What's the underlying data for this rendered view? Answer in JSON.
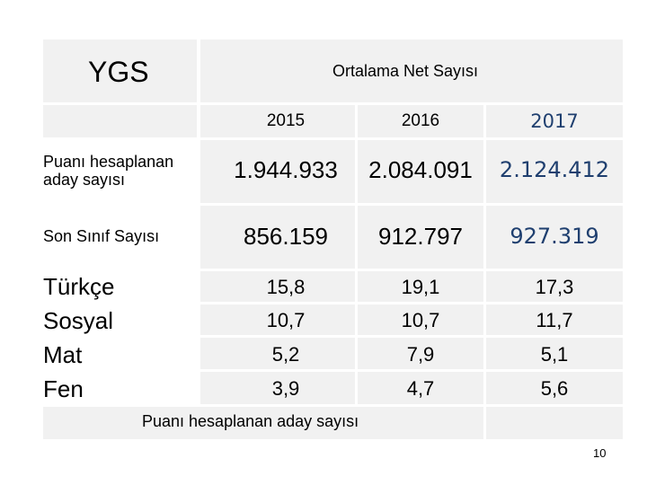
{
  "table": {
    "corner_label": "YGS",
    "header_label": "Ortalama Net Sayısı",
    "years": [
      "2015",
      "2016",
      "2017"
    ],
    "rows": [
      {
        "label": "Puanı hesaplanan aday sayısı",
        "values": [
          "1.944.933",
          "2.084.091",
          "2.124.412"
        ]
      },
      {
        "label": "Son Sınıf Sayısı",
        "values": [
          "856.159",
          "912.797",
          "927.319"
        ]
      }
    ],
    "subjects": [
      {
        "label": "Türkçe",
        "values": [
          "15,8",
          "19,1",
          "17,3"
        ]
      },
      {
        "label": "Sosyal",
        "values": [
          "10,7",
          "10,7",
          "11,7"
        ]
      },
      {
        "label": "Mat",
        "values": [
          "5,2",
          "7,9",
          "5,1"
        ]
      },
      {
        "label": "Fen",
        "values": [
          "3,9",
          "4,7",
          "5,6"
        ]
      }
    ],
    "footer_note": "Puanı hesaplanan aday sayısı"
  },
  "page_number": "10",
  "colors": {
    "cell_bg": "#f1f1f1",
    "year_2017_text": "#1f3f6f"
  }
}
